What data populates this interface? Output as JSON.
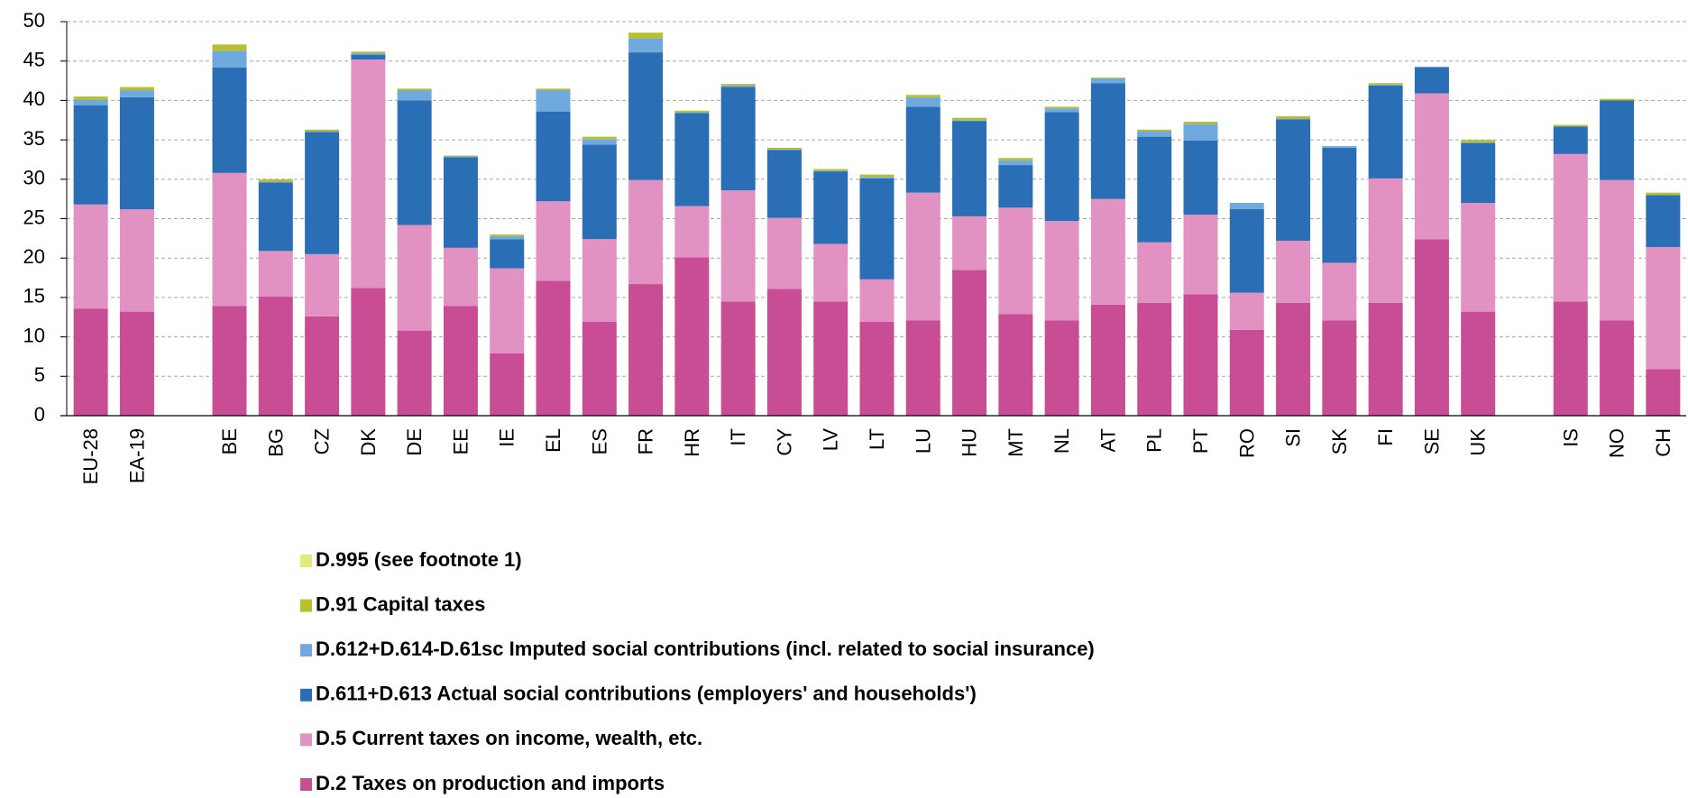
{
  "chart_data": {
    "type": "stacked_bar",
    "categories": [
      "EU-28",
      "EA-19",
      null,
      "BE",
      "BG",
      "CZ",
      "DK",
      "DE",
      "EE",
      "IE",
      "EL",
      "ES",
      "FR",
      "HR",
      "IT",
      "CY",
      "LV",
      "LT",
      "LU",
      "HU",
      "MT",
      "NL",
      "AT",
      "PL",
      "PT",
      "RO",
      "SI",
      "SK",
      "FI",
      "SE",
      "UK",
      null,
      "IS",
      "NO",
      "CH"
    ],
    "series": [
      {
        "name": "D.2 Taxes on production and imports",
        "color": "#c94d95",
        "values": [
          13.6,
          13.2,
          null,
          13.9,
          15.1,
          12.6,
          16.2,
          10.8,
          13.9,
          7.9,
          17.1,
          11.9,
          16.7,
          20.1,
          14.5,
          16.1,
          14.5,
          11.9,
          12.1,
          18.5,
          12.9,
          12.1,
          14.1,
          14.3,
          15.4,
          10.9,
          14.3,
          12.1,
          14.3,
          22.4,
          13.2,
          null,
          14.5,
          12.1,
          5.9
        ]
      },
      {
        "name": "D.5 Current taxes on income, wealth, etc.",
        "color": "#e192c3",
        "values": [
          13.2,
          13.0,
          null,
          16.9,
          5.8,
          7.9,
          29.0,
          13.4,
          7.4,
          10.8,
          10.1,
          10.5,
          13.2,
          6.5,
          14.1,
          9.0,
          7.3,
          5.4,
          16.2,
          6.8,
          13.5,
          12.6,
          13.4,
          7.7,
          10.1,
          4.7,
          7.9,
          7.3,
          15.8,
          18.5,
          13.8,
          null,
          18.7,
          17.8,
          15.5
        ]
      },
      {
        "name": "D.611+D.613 Actual social contributions (employers' and households')",
        "color": "#2a6eb6",
        "values": [
          12.6,
          14.2,
          null,
          13.4,
          8.7,
          15.5,
          0.6,
          15.8,
          11.5,
          3.7,
          11.4,
          12.0,
          16.2,
          11.8,
          13.1,
          8.6,
          9.2,
          12.8,
          10.9,
          12.1,
          5.4,
          13.8,
          14.7,
          13.4,
          9.4,
          10.6,
          15.4,
          14.6,
          11.8,
          3.3,
          7.6,
          null,
          3.5,
          10.1,
          6.6
        ]
      },
      {
        "name": "D.612+D.614-D.61sc Imputed social contributions (incl. related to social insurance)",
        "color": "#6fa9de",
        "values": [
          0.7,
          0.9,
          null,
          2.1,
          0.1,
          0.1,
          0.2,
          1.3,
          0.1,
          0.4,
          2.7,
          0.7,
          1.8,
          0.1,
          0.2,
          0.1,
          0.1,
          0.2,
          1.2,
          0.1,
          0.6,
          0.5,
          0.6,
          0.7,
          2.1,
          0.8,
          0.1,
          0.2,
          0.1,
          0.1,
          0.1,
          null,
          0,
          0,
          0
        ]
      },
      {
        "name": "D.91 Capital taxes",
        "color": "#b9c128",
        "values": [
          0.4,
          0.4,
          null,
          0.8,
          0.3,
          0.2,
          0.2,
          0.2,
          0.1,
          0.2,
          0.2,
          0.3,
          0.7,
          0.2,
          0.2,
          0.2,
          0.2,
          0.3,
          0.3,
          0.3,
          0.3,
          0.2,
          0.1,
          0.2,
          0.3,
          0,
          0.3,
          0,
          0.2,
          0,
          0.3,
          null,
          0.2,
          0.2,
          0.3
        ]
      },
      {
        "name": "D.995 (see footnote 1)",
        "color": "#e2ea7a",
        "values": [
          0,
          0,
          null,
          0,
          0,
          0,
          0,
          0,
          0,
          0,
          0,
          0,
          0,
          0,
          0,
          0,
          0,
          0,
          0,
          0,
          0,
          0,
          0,
          0,
          0,
          0,
          0,
          0,
          0,
          0,
          0,
          null,
          0,
          0,
          0
        ]
      }
    ],
    "ylim": [
      0,
      50
    ],
    "yticks": [
      0,
      5,
      10,
      15,
      20,
      25,
      30,
      35,
      40,
      45,
      50
    ],
    "grid": true
  }
}
